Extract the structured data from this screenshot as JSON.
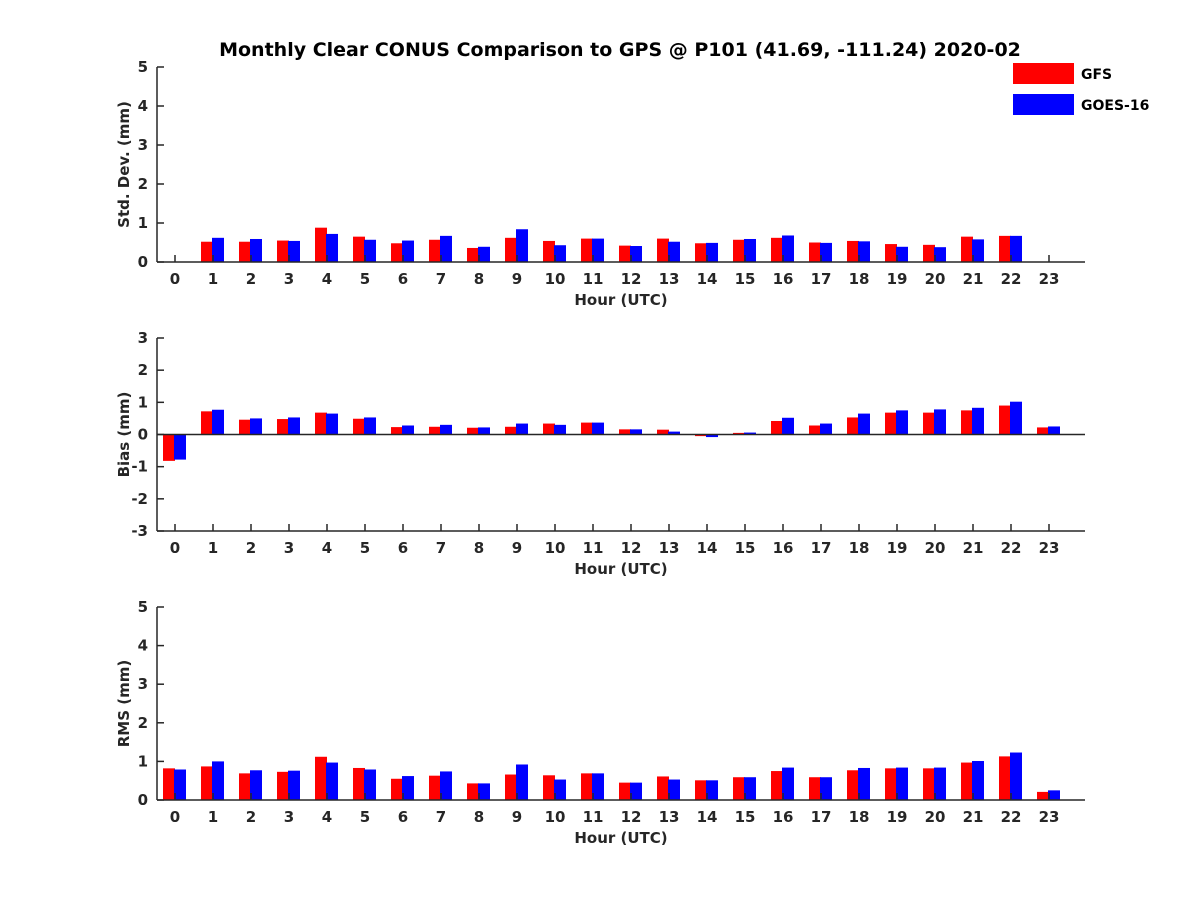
{
  "chart_data": {
    "type": "bar",
    "title": "Monthly Clear CONUS Comparison to GPS @ P101 (41.69, -111.24) 2020-02",
    "categories": [
      "0",
      "1",
      "2",
      "3",
      "4",
      "5",
      "6",
      "7",
      "8",
      "9",
      "10",
      "11",
      "12",
      "13",
      "14",
      "15",
      "16",
      "17",
      "18",
      "19",
      "20",
      "21",
      "22",
      "23"
    ],
    "legend": {
      "position": "top-right",
      "entries": [
        {
          "name": "GFS",
          "color": "#ff0000"
        },
        {
          "name": "GOES-16",
          "color": "#0000ff"
        }
      ]
    },
    "panels": [
      {
        "id": "std",
        "ylabel": "Std. Dev. (mm)",
        "xlabel": "Hour (UTC)",
        "ylim": [
          0,
          5
        ],
        "yticks": [
          "0",
          "1",
          "2",
          "3",
          "4",
          "5"
        ],
        "series": [
          {
            "name": "GFS",
            "color": "#ff0000",
            "values": [
              null,
              0.52,
              0.52,
              0.55,
              0.88,
              0.65,
              0.48,
              0.57,
              0.36,
              0.62,
              0.54,
              0.6,
              0.42,
              0.6,
              0.48,
              0.57,
              0.62,
              0.5,
              0.54,
              0.46,
              0.44,
              0.65,
              0.67,
              null
            ]
          },
          {
            "name": "GOES-16",
            "color": "#0000ff",
            "values": [
              null,
              0.62,
              0.59,
              0.54,
              0.72,
              0.57,
              0.55,
              0.67,
              0.39,
              0.84,
              0.43,
              0.6,
              0.41,
              0.52,
              0.49,
              0.59,
              0.68,
              0.49,
              0.53,
              0.39,
              0.38,
              0.58,
              0.67,
              null
            ]
          }
        ]
      },
      {
        "id": "bias",
        "ylabel": "Bias (mm)",
        "xlabel": "Hour (UTC)",
        "ylim": [
          -3,
          3
        ],
        "yticks": [
          "-3",
          "-2",
          "-1",
          "0",
          "1",
          "2",
          "3"
        ],
        "series": [
          {
            "name": "GFS",
            "color": "#ff0000",
            "values": [
              -0.82,
              0.72,
              0.46,
              0.48,
              0.68,
              0.49,
              0.23,
              0.24,
              0.21,
              0.24,
              0.34,
              0.37,
              0.16,
              0.15,
              -0.05,
              0.05,
              0.42,
              0.28,
              0.53,
              0.68,
              0.68,
              0.75,
              0.9,
              0.22
            ]
          },
          {
            "name": "GOES-16",
            "color": "#0000ff",
            "values": [
              -0.78,
              0.77,
              0.5,
              0.53,
              0.65,
              0.53,
              0.28,
              0.3,
              0.22,
              0.34,
              0.3,
              0.37,
              0.16,
              0.09,
              -0.08,
              0.06,
              0.52,
              0.34,
              0.65,
              0.75,
              0.78,
              0.83,
              1.02,
              0.25
            ]
          }
        ]
      },
      {
        "id": "rms",
        "ylabel": "RMS (mm)",
        "xlabel": "Hour (UTC)",
        "ylim": [
          0,
          5
        ],
        "yticks": [
          "0",
          "1",
          "2",
          "3",
          "4",
          "5"
        ],
        "series": [
          {
            "name": "GFS",
            "color": "#ff0000",
            "values": [
              0.82,
              0.87,
              0.69,
              0.73,
              1.12,
              0.83,
              0.55,
              0.63,
              0.43,
              0.66,
              0.64,
              0.69,
              0.45,
              0.61,
              0.51,
              0.59,
              0.75,
              0.59,
              0.77,
              0.82,
              0.82,
              0.97,
              1.13,
              0.21
            ]
          },
          {
            "name": "GOES-16",
            "color": "#0000ff",
            "values": [
              0.79,
              1.0,
              0.77,
              0.76,
              0.97,
              0.79,
              0.62,
              0.74,
              0.43,
              0.92,
              0.53,
              0.69,
              0.45,
              0.53,
              0.51,
              0.59,
              0.84,
              0.59,
              0.83,
              0.84,
              0.84,
              1.01,
              1.23,
              0.25
            ]
          }
        ]
      }
    ]
  }
}
